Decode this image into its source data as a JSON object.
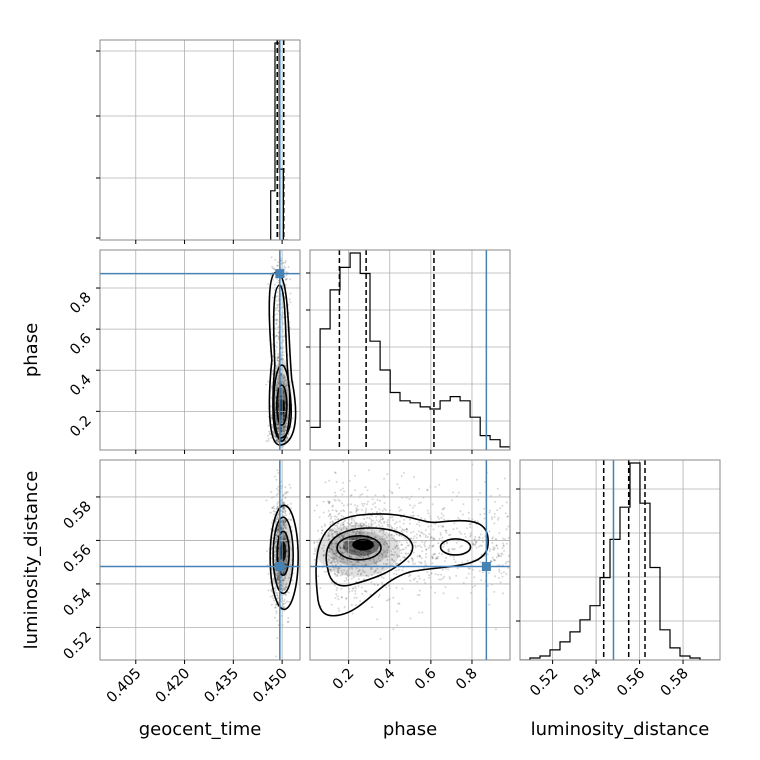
{
  "chart_data": {
    "type": "corner",
    "parameters": [
      "geocent_time",
      "phase",
      "luminosity_distance"
    ],
    "truth": {
      "geocent_time": 0.4493,
      "phase": 0.87,
      "luminosity_distance": 0.548
    },
    "ranges": {
      "geocent_time": [
        0.394,
        0.4555
      ],
      "phase": [
        0.012,
        0.985
      ],
      "luminosity_distance": [
        0.505,
        0.597
      ]
    },
    "ticks": {
      "geocent_time": {
        "values": [
          0.405,
          0.42,
          0.435,
          0.45
        ],
        "labels": [
          "0.405",
          "0.420",
          "0.435",
          "0.450"
        ]
      },
      "phase": {
        "values": [
          0.2,
          0.4,
          0.6,
          0.8
        ],
        "labels": [
          "0.2",
          "0.4",
          "0.6",
          "0.8"
        ]
      },
      "luminosity_distance": {
        "values": [
          0.52,
          0.54,
          0.56,
          0.58
        ],
        "labels": [
          "0.52",
          "0.54",
          "0.56",
          "0.58"
        ]
      }
    },
    "quantiles": {
      "geocent_time": [
        0.4485,
        0.4492,
        0.4505
      ],
      "phase": [
        0.155,
        0.285,
        0.615
      ],
      "luminosity_distance": [
        0.5435,
        0.555,
        0.5625
      ]
    },
    "histograms": {
      "geocent_time": {
        "edges": [
          0.4465,
          0.4478,
          0.4491,
          0.4504,
          0.4517
        ],
        "counts": [
          0.25,
          1.0,
          0.36,
          0.0
        ]
      },
      "phase": {
        "edges": [
          0.012,
          0.061,
          0.11,
          0.158,
          0.207,
          0.256,
          0.304,
          0.353,
          0.402,
          0.45,
          0.499,
          0.548,
          0.596,
          0.645,
          0.694,
          0.742,
          0.791,
          0.84,
          0.888,
          0.937,
          0.985
        ],
        "counts": [
          0.11,
          0.59,
          0.78,
          0.89,
          0.96,
          0.86,
          0.53,
          0.39,
          0.28,
          0.24,
          0.23,
          0.21,
          0.2,
          0.24,
          0.26,
          0.24,
          0.16,
          0.07,
          0.05,
          0.015
        ]
      },
      "luminosity_distance": {
        "edges": [
          0.505,
          0.5096,
          0.5142,
          0.5188,
          0.5234,
          0.528,
          0.5326,
          0.5372,
          0.5418,
          0.5464,
          0.551,
          0.5556,
          0.5602,
          0.5648,
          0.5694,
          0.574,
          0.5786,
          0.5832,
          0.5878,
          0.5924,
          0.597
        ],
        "counts": [
          0.0,
          0.01,
          0.02,
          0.05,
          0.09,
          0.14,
          0.2,
          0.27,
          0.41,
          0.6,
          0.76,
          0.98,
          0.78,
          0.46,
          0.15,
          0.06,
          0.02,
          0.01,
          0.0,
          0.0
        ]
      }
    },
    "density_modes": {
      "geocent_time_vs_phase": {
        "x": 0.4493,
        "y": 0.24
      },
      "geocent_time_vs_luminosity_distance": {
        "x": 0.4494,
        "y": 0.555
      },
      "phase_vs_luminosity_distance": {
        "x": 0.27,
        "y": 0.558
      }
    },
    "grid": true
  }
}
